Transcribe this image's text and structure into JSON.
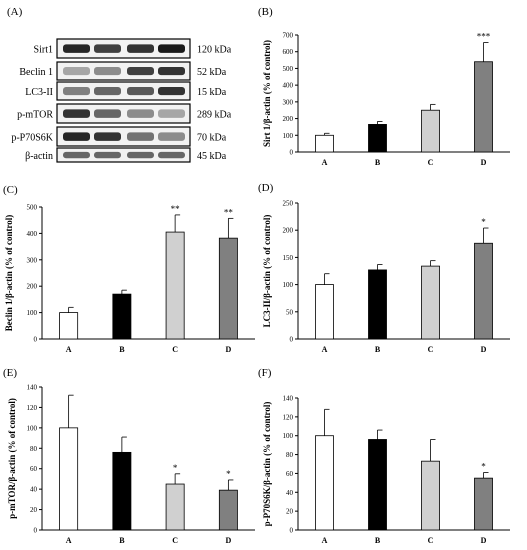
{
  "western_blot": {
    "panel_label": "(A)",
    "rows": [
      {
        "protein": "Sirt1",
        "size": "120 kDa",
        "intensity": [
          0.85,
          0.75,
          0.8,
          0.9
        ]
      },
      {
        "protein": "Beclin 1",
        "size": "52 kDa",
        "intensity": [
          0.35,
          0.45,
          0.75,
          0.8
        ]
      },
      {
        "protein": "LC3-II",
        "size": "15 kDa",
        "intensity": [
          0.5,
          0.6,
          0.65,
          0.8
        ]
      },
      {
        "protein": "p-mTOR",
        "size": "289 kDa",
        "intensity": [
          0.8,
          0.6,
          0.45,
          0.35
        ]
      },
      {
        "protein": "p-P70S6K",
        "size": "70 kDa",
        "intensity": [
          0.85,
          0.8,
          0.55,
          0.45
        ]
      },
      {
        "protein": "β-actin",
        "size": "45 kDa",
        "intensity": [
          0.6,
          0.6,
          0.6,
          0.6
        ]
      }
    ]
  },
  "chart_data": [
    {
      "panel": "(B)",
      "type": "bar",
      "ylabel": "Sirt 1/β-actin (% of control)",
      "categories": [
        "A",
        "B",
        "C",
        "D"
      ],
      "values": [
        100,
        165,
        250,
        540
      ],
      "errors": [
        12,
        18,
        35,
        115
      ],
      "significance": [
        "",
        "",
        "",
        "***"
      ],
      "ylim": [
        0,
        700
      ],
      "yticks": [
        0,
        100,
        200,
        300,
        400,
        500,
        600,
        700
      ],
      "colors": [
        "#ffffff",
        "#000000",
        "#d0d0d0",
        "#808080"
      ]
    },
    {
      "panel": "(C)",
      "type": "bar",
      "ylabel": "Beclin 1/β-actin (% of control)",
      "categories": [
        "A",
        "B",
        "C",
        "D"
      ],
      "values": [
        100,
        170,
        405,
        382
      ],
      "errors": [
        20,
        15,
        65,
        75
      ],
      "significance": [
        "",
        "",
        "**",
        "**"
      ],
      "ylim": [
        0,
        500
      ],
      "yticks": [
        0,
        100,
        200,
        300,
        400,
        500
      ],
      "colors": [
        "#ffffff",
        "#000000",
        "#d0d0d0",
        "#808080"
      ]
    },
    {
      "panel": "(D)",
      "type": "bar",
      "ylabel": "LC3-II/β-actin (% of control)",
      "categories": [
        "A",
        "B",
        "C",
        "D"
      ],
      "values": [
        100,
        127,
        134,
        176
      ],
      "errors": [
        20,
        10,
        10,
        28
      ],
      "significance": [
        "",
        "",
        "",
        "*"
      ],
      "ylim": [
        0,
        250
      ],
      "yticks": [
        0,
        50,
        100,
        150,
        200,
        250
      ],
      "colors": [
        "#ffffff",
        "#000000",
        "#d0d0d0",
        "#808080"
      ]
    },
    {
      "panel": "(E)",
      "type": "bar",
      "ylabel": "p-mTOR/β-actin (% of control)",
      "categories": [
        "A",
        "B",
        "C",
        "D"
      ],
      "values": [
        100,
        76,
        45,
        39
      ],
      "errors": [
        32,
        15,
        10,
        10
      ],
      "significance": [
        "",
        "",
        "*",
        "*"
      ],
      "ylim": [
        0,
        140
      ],
      "yticks": [
        0,
        20,
        40,
        60,
        80,
        100,
        120,
        140
      ],
      "colors": [
        "#ffffff",
        "#000000",
        "#d0d0d0",
        "#808080"
      ]
    },
    {
      "panel": "(F)",
      "type": "bar",
      "ylabel": "p-P70S6K/β-actin (% of control)",
      "categories": [
        "A",
        "B",
        "C",
        "D"
      ],
      "values": [
        100,
        96,
        73,
        55
      ],
      "errors": [
        28,
        10,
        23,
        6
      ],
      "significance": [
        "",
        "",
        "",
        "*"
      ],
      "ylim": [
        0,
        140
      ],
      "yticks": [
        0,
        20,
        40,
        60,
        80,
        100,
        120,
        140
      ],
      "colors": [
        "#ffffff",
        "#000000",
        "#d0d0d0",
        "#808080"
      ]
    }
  ]
}
